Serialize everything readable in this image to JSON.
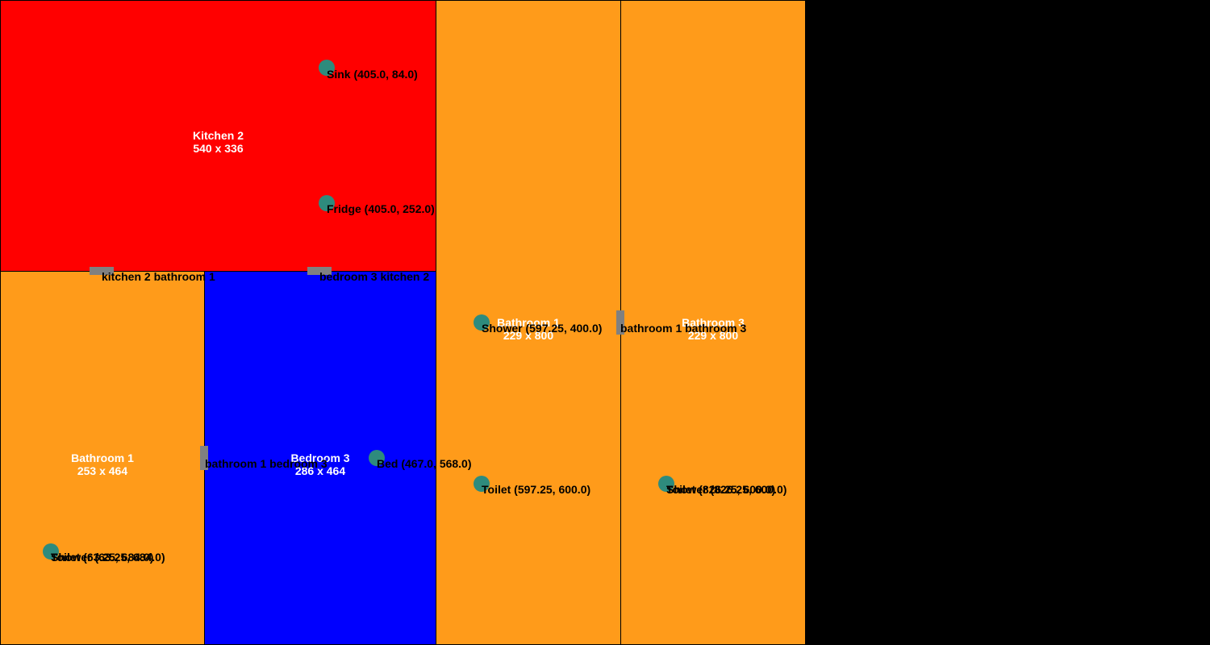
{
  "colors": {
    "kitchen": "#ff0000",
    "bathroom": "#ff9b1a",
    "bedroom": "#0000ff",
    "fixture": "#2e8b7d",
    "door": "#808080",
    "background": "#000000"
  },
  "rooms": [
    {
      "name": "Kitchen 2",
      "size": "540 x 336",
      "color": "kitchen"
    },
    {
      "name": "Bathroom 1",
      "size": "253 x 464",
      "color": "bathroom"
    },
    {
      "name": "Bedroom 3",
      "size": "286 x 464",
      "color": "bedroom"
    },
    {
      "name": "Bathroom 1",
      "size": "229 x 800",
      "color": "bathroom"
    },
    {
      "name": "Bathroom 3",
      "size": "229 x 800",
      "color": "bathroom"
    }
  ],
  "doors": [
    {
      "label": "kitchen 2 bathroom 1"
    },
    {
      "label": "bedroom 3 kitchen 2"
    },
    {
      "label": "bathroom 1 bedroom 3"
    },
    {
      "label": "bathroom 1 bathroom 3"
    }
  ],
  "fixtures": [
    {
      "label": "Sink (405.0, 84.0)",
      "icon": "fixture-dot-icon"
    },
    {
      "label": "Fridge (405.0, 252.0)",
      "icon": "fixture-dot-icon"
    },
    {
      "label": "Shower (597.25, 400.0)",
      "icon": "fixture-dot-icon"
    },
    {
      "label": "Toilet (597.25, 600.0)",
      "icon": "fixture-dot-icon"
    },
    {
      "label": "Bed (467.0, 568.0)",
      "icon": "fixture-dot-icon"
    },
    {
      "label": "Shower (63.25, 684.0)",
      "icon": "fixture-dot-icon"
    },
    {
      "label": "Toilet (63.25, 684.0)",
      "icon": "fixture-dot-icon"
    },
    {
      "label": "Shower (826.25, 600.0)",
      "icon": "fixture-dot-icon"
    },
    {
      "label": "Toilet (826.25, 600.0)",
      "icon": "fixture-dot-icon"
    }
  ]
}
